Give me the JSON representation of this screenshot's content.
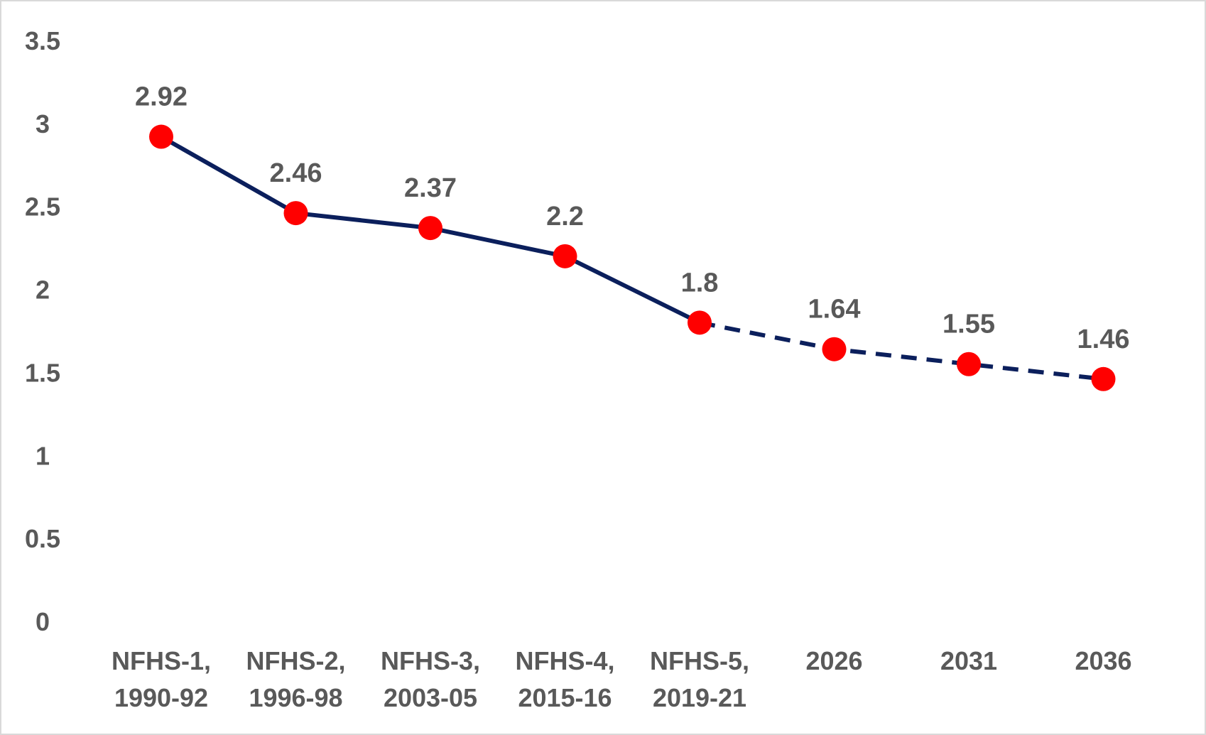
{
  "chart_data": {
    "type": "line",
    "title": "",
    "xlabel": "",
    "ylabel": "",
    "categories": [
      [
        "NFHS-1,",
        "1990-92"
      ],
      [
        "NFHS-2,",
        "1996-98"
      ],
      [
        "NFHS-3,",
        "2003-05"
      ],
      [
        "NFHS-4,",
        "2015-16"
      ],
      [
        "NFHS-5,",
        "2019-21"
      ],
      [
        "2026"
      ],
      [
        "2031"
      ],
      [
        "2036"
      ]
    ],
    "values": [
      2.92,
      2.46,
      2.37,
      2.2,
      1.8,
      1.64,
      1.55,
      1.46
    ],
    "data_labels": [
      "2.92",
      "2.46",
      "2.37",
      "2.2",
      "1.8",
      "1.64",
      "1.55",
      "1.46"
    ],
    "solid_until_index": 4,
    "ylim": [
      0,
      3.5
    ],
    "yticks": [
      "0",
      "0.5",
      "1",
      "1.5",
      "2",
      "2.5",
      "3",
      "3.5"
    ],
    "grid": false,
    "legend": "none",
    "colors": {
      "line": "#0b1f5c",
      "marker": "#ff0000",
      "text": "#595959"
    }
  }
}
